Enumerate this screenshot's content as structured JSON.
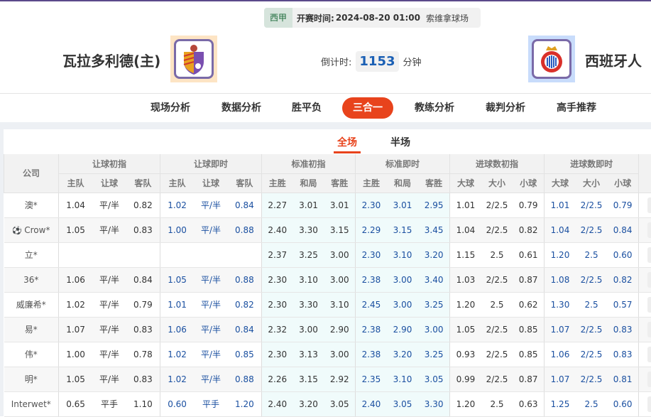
{
  "match": {
    "league": "西甲",
    "kickoff_label": "开赛时间:",
    "kickoff": "2024-08-20 01:00",
    "venue": "索维拿球场",
    "home": "瓦拉多利德(主)",
    "away": "西班牙人",
    "countdown_label": "倒计时:",
    "countdown": "1153",
    "countdown_unit": "分钟"
  },
  "colors": {
    "accent": "#e8431c",
    "live_blue": "#1a4fa0",
    "std_bg": "#f0fbfb"
  },
  "nav": [
    {
      "label": "现场分析"
    },
    {
      "label": "数据分析"
    },
    {
      "label": "胜平负"
    },
    {
      "label": "三合一",
      "active": true
    },
    {
      "label": "教练分析"
    },
    {
      "label": "裁判分析"
    },
    {
      "label": "高手推荐"
    }
  ],
  "tabs": [
    {
      "label": "全场",
      "active": true
    },
    {
      "label": "半场"
    }
  ],
  "table": {
    "company_header": "公司",
    "groups": [
      "让球初指",
      "让球即时",
      "标准初指",
      "标准即时",
      "进球数初指",
      "进球数即时"
    ],
    "subheaders": [
      [
        "主队",
        "让球",
        "客队"
      ],
      [
        "主队",
        "让球",
        "客队"
      ],
      [
        "主胜",
        "和局",
        "客胜"
      ],
      [
        "主胜",
        "和局",
        "客胜"
      ],
      [
        "大球",
        "大小",
        "小球"
      ],
      [
        "大球",
        "大小",
        "小球"
      ]
    ],
    "rows": [
      {
        "company": "澳*",
        "values": [
          "1.04",
          "平/半",
          "0.82",
          "1.02",
          "平/半",
          "0.84",
          "2.27",
          "3.01",
          "3.01",
          "2.30",
          "3.01",
          "2.95",
          "1.01",
          "2/2.5",
          "0.79",
          "1.01",
          "2/2.5",
          "0.79"
        ]
      },
      {
        "company": "Crow*",
        "icon": "soccer-ball-icon",
        "values": [
          "1.05",
          "平/半",
          "0.83",
          "1.00",
          "平/半",
          "0.88",
          "2.40",
          "3.30",
          "3.15",
          "2.29",
          "3.15",
          "3.45",
          "1.04",
          "2/2.5",
          "0.82",
          "1.04",
          "2/2.5",
          "0.84"
        ]
      },
      {
        "company": "立*",
        "values": [
          "",
          "",
          "",
          "",
          "",
          "",
          "2.37",
          "3.25",
          "3.00",
          "2.30",
          "3.10",
          "3.20",
          "1.15",
          "2.5",
          "0.61",
          "1.20",
          "2.5",
          "0.60"
        ]
      },
      {
        "company": "36*",
        "values": [
          "1.06",
          "平/半",
          "0.84",
          "1.05",
          "平/半",
          "0.88",
          "2.30",
          "3.10",
          "3.00",
          "2.38",
          "3.00",
          "3.40",
          "1.03",
          "2/2.5",
          "0.87",
          "1.08",
          "2/2.5",
          "0.82"
        ]
      },
      {
        "company": "威廉希*",
        "values": [
          "1.02",
          "平/半",
          "0.79",
          "1.01",
          "平/半",
          "0.82",
          "2.30",
          "3.30",
          "3.10",
          "2.45",
          "3.00",
          "3.25",
          "1.20",
          "2.5",
          "0.62",
          "1.30",
          "2.5",
          "0.57"
        ]
      },
      {
        "company": "易*",
        "values": [
          "1.07",
          "平/半",
          "0.83",
          "1.06",
          "平/半",
          "0.84",
          "2.32",
          "3.00",
          "2.90",
          "2.38",
          "2.90",
          "3.00",
          "1.05",
          "2/2.5",
          "0.85",
          "1.07",
          "2/2.5",
          "0.83"
        ]
      },
      {
        "company": "伟*",
        "values": [
          "1.00",
          "平/半",
          "0.78",
          "1.02",
          "平/半",
          "0.85",
          "2.30",
          "3.13",
          "3.00",
          "2.38",
          "3.20",
          "3.25",
          "0.93",
          "2/2.5",
          "0.85",
          "1.06",
          "2/2.5",
          "0.83"
        ]
      },
      {
        "company": "明*",
        "values": [
          "1.05",
          "平/半",
          "0.83",
          "1.02",
          "平/半",
          "0.88",
          "2.26",
          "3.15",
          "2.92",
          "2.35",
          "3.10",
          "3.05",
          "0.99",
          "2/2.5",
          "0.87",
          "1.07",
          "2/2.5",
          "0.81"
        ]
      },
      {
        "company": "Interwet*",
        "values": [
          "0.65",
          "平手",
          "1.10",
          "0.60",
          "平手",
          "1.20",
          "2.40",
          "3.20",
          "3.05",
          "2.40",
          "3.05",
          "3.30",
          "1.20",
          "2.5",
          "0.63",
          "1.25",
          "2.5",
          "0.60"
        ]
      }
    ]
  }
}
